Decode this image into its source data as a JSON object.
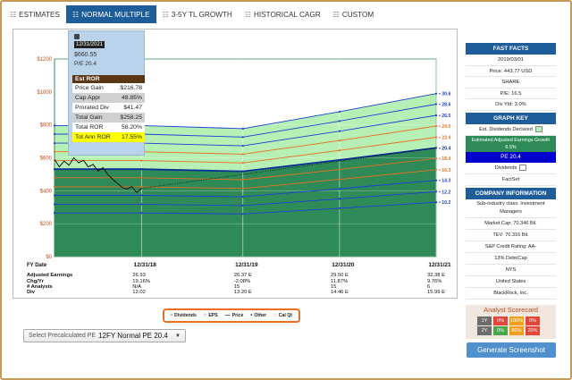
{
  "tabs": [
    {
      "label": "ESTIMATES",
      "active": false
    },
    {
      "label": "NORMAL MULTIPLE",
      "active": true
    },
    {
      "label": "3-5Y TL GROWTH",
      "active": false
    },
    {
      "label": "HISTORICAL CAGR",
      "active": false
    },
    {
      "label": "CUSTOM",
      "active": false
    }
  ],
  "tooltip": {
    "date": "12/31/2021",
    "price": "$660.55",
    "pe": "P/E 20.4",
    "ror_title": "Est ROR",
    "rows": [
      {
        "label": "Price Gain",
        "value": "$216.78",
        "style": "w"
      },
      {
        "label": "Cap Appr",
        "value": "48.85%",
        "style": "g"
      },
      {
        "label": "Prorated Div",
        "value": "$41.47",
        "style": "w"
      },
      {
        "label": "Total Gain",
        "value": "$258.25",
        "style": "g"
      },
      {
        "label": "Total ROR",
        "value": "58.20%",
        "style": "w"
      },
      {
        "label": "Tot Ann ROR",
        "value": "17.55%",
        "style": "y"
      }
    ]
  },
  "chart_data": {
    "type": "area",
    "y_ticks": [
      "$1200",
      "$1000",
      "$800",
      "$600",
      "$400",
      "$200",
      "$0"
    ],
    "ylim": [
      0,
      1200
    ],
    "x_labels": [
      "12/31/18",
      "12/31/19",
      "12/31/20",
      "12/31/21"
    ],
    "x_values": [
      2018.9,
      2019.95,
      2020.95,
      2021.95
    ],
    "pe_lines": [
      {
        "label": "30.6",
        "y": [
          796,
          777,
          880,
          990
        ],
        "color": "#1a3fd6"
      },
      {
        "label": "28.6",
        "y": [
          744,
          726,
          823,
          926
        ],
        "color": "#1a3fd6"
      },
      {
        "label": "26.5",
        "y": [
          689,
          673,
          762,
          858
        ],
        "color": "#1a3fd6"
      },
      {
        "label": "24.5",
        "y": [
          637,
          622,
          705,
          793
        ],
        "color": "#e8701f"
      },
      {
        "label": "22.4",
        "y": [
          583,
          569,
          645,
          725
        ],
        "color": "#e8701f"
      },
      {
        "label": "20.4",
        "y": [
          531,
          518,
          587,
          660
        ],
        "color": "#0a2f96"
      },
      {
        "label": "18.4",
        "y": [
          479,
          467,
          529,
          596
        ],
        "color": "#e8701f"
      },
      {
        "label": "16.3",
        "y": [
          424,
          414,
          469,
          528
        ],
        "color": "#e8701f"
      },
      {
        "label": "14.3",
        "y": [
          372,
          363,
          412,
          463
        ],
        "color": "#1a3fd6"
      },
      {
        "label": "12.2",
        "y": [
          318,
          310,
          351,
          395
        ],
        "color": "#1a3fd6"
      },
      {
        "label": "10.2",
        "y": [
          265,
          259,
          294,
          330
        ],
        "color": "#1a3fd6"
      }
    ],
    "price": {
      "x": [
        2018.0,
        2018.05,
        2018.1,
        2018.15,
        2018.2,
        2018.25,
        2018.3,
        2018.35,
        2018.4,
        2018.45,
        2018.5,
        2018.55,
        2018.6,
        2018.65,
        2018.7,
        2018.75,
        2018.8,
        2018.85,
        2018.9
      ],
      "y": [
        590,
        545,
        580,
        555,
        600,
        570,
        585,
        545,
        560,
        520,
        540,
        500,
        470,
        445,
        420,
        410,
        425,
        390,
        415
      ]
    },
    "projection": {
      "x": [
        2018.9,
        2021.95
      ],
      "y": [
        415,
        660
      ]
    },
    "table": {
      "header": "FY Date",
      "row_labels": [
        "Adjusted Earnings",
        "Chg/Yr",
        "# Analysts",
        "Div"
      ],
      "columns": [
        {
          "earnings": "26.93",
          "chg": "19.16%",
          "analysts": "N/A",
          "div": "12.02"
        },
        {
          "earnings": "26.37 E",
          "chg": "-2.08%",
          "analysts": "15",
          "div": "13.20 E"
        },
        {
          "earnings": "29.50 E",
          "chg": "11.87%",
          "analysts": "15",
          "div": "14.46 E"
        },
        {
          "earnings": "32.38 E",
          "chg": "9.76%",
          "analysts": "6",
          "div": "15.99 E"
        }
      ]
    },
    "legend": [
      "Dividends",
      "EPS",
      "Price",
      "Other",
      "Cal Qt"
    ]
  },
  "pe_select": {
    "prefix": "Select Precalculated PE",
    "value": "12FY Normal PE 20.4"
  },
  "fast_facts": {
    "title": "FAST FACTS",
    "rows": [
      "2019/03/01",
      "Price: 443.77 USD",
      "SHARE",
      "P/E: 16.5",
      "Div Yld: 3.0%"
    ]
  },
  "graph_key": {
    "title": "GRAPH KEY",
    "declared": "Est. Dividends Declared",
    "earnings": "Estimated Adjusted Earnings Growth 6.5%",
    "pe": "PE 20.4",
    "dividends": "Dividends",
    "factset": "FactSet"
  },
  "company_info": {
    "title": "COMPANY INFORMATION",
    "sub_industry": "Sub-industry class: Investment Managers",
    "rows": [
      "Market Cap: 70.346 Bil.",
      "TEV: 70.316 Bil.",
      "S&P Credit Rating: AA-",
      "13% Debt/Cap",
      "NYS",
      "United States",
      "BlackRock, Inc."
    ]
  },
  "scorecard": {
    "title": "Analyst Scorecard",
    "row1": [
      "1Y",
      "0%",
      "100%",
      "0%"
    ],
    "row2": [
      "2Y",
      "0%",
      "80%",
      "20%"
    ]
  },
  "generate_button": "Generate Screenshot",
  "colors": {
    "accent": "#1e5d9a",
    "green_area": "#2e8b57",
    "light_green": "#b7f0b4",
    "orange": "#e8701f",
    "border": "#c79a55"
  }
}
